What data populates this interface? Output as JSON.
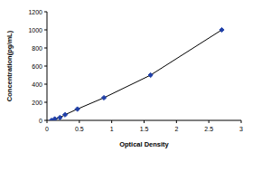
{
  "chart_data": {
    "type": "line",
    "x_label": "Optical Density",
    "y_label": "Concentration(pg/mL)",
    "x": [
      0.07,
      0.12,
      0.2,
      0.28,
      0.47,
      0.88,
      1.6,
      2.7
    ],
    "values": [
      0,
      15.6,
      31.2,
      62.5,
      125,
      250,
      500,
      1000
    ],
    "color": "#1f3fa8",
    "marker": "diamond",
    "line_style": "solid",
    "xlim": [
      0,
      3
    ],
    "xticks": [
      0,
      0.5,
      1,
      1.5,
      2,
      2.5,
      3
    ],
    "ylim": [
      0,
      1200
    ],
    "yticks": [
      0,
      200,
      400,
      600,
      800,
      1000,
      1200
    ],
    "grid": false
  }
}
